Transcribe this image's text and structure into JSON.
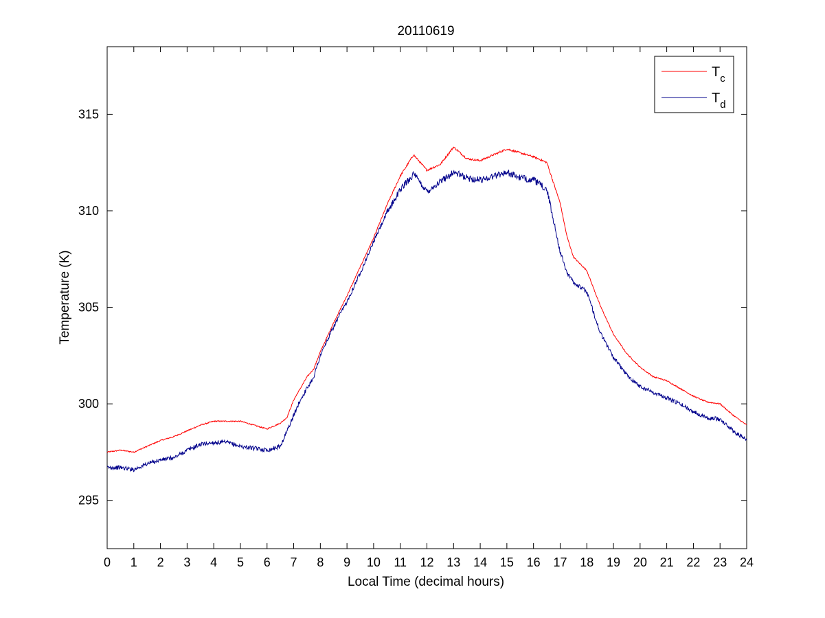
{
  "chart_data": {
    "type": "line",
    "title": "20110619",
    "xlabel": "Local Time (decimal hours)",
    "ylabel": "Temperature (K)",
    "xlim": [
      0,
      24
    ],
    "ylim": [
      292.5,
      318.5
    ],
    "x_ticks": [
      "0",
      "1",
      "2",
      "3",
      "4",
      "5",
      "6",
      "7",
      "8",
      "9",
      "10",
      "11",
      "12",
      "13",
      "14",
      "15",
      "16",
      "17",
      "18",
      "19",
      "20",
      "21",
      "22",
      "23",
      "24"
    ],
    "y_ticks": [
      "295",
      "300",
      "305",
      "310",
      "315"
    ],
    "grid": false,
    "legend_position": "top-right",
    "series": [
      {
        "name": "T",
        "subscript": "c",
        "color": "#ff0000",
        "x": [
          0,
          0.5,
          1,
          1.5,
          2,
          2.5,
          3,
          3.5,
          4,
          4.5,
          5,
          5.5,
          6,
          6.5,
          6.75,
          7,
          7.25,
          7.5,
          7.75,
          8,
          8.5,
          9,
          9.5,
          10,
          10.5,
          11,
          11.5,
          12,
          12.5,
          13,
          13.5,
          14,
          14.5,
          15,
          15.5,
          16,
          16.5,
          17,
          17.25,
          17.5,
          18,
          18.5,
          19,
          19.5,
          20,
          20.5,
          21,
          21.5,
          22,
          22.5,
          23,
          23.5,
          24
        ],
        "y": [
          297.5,
          297.6,
          297.5,
          297.8,
          298.1,
          298.3,
          298.6,
          298.9,
          299.1,
          299.1,
          299.1,
          298.9,
          298.7,
          299.0,
          299.3,
          300.2,
          300.8,
          301.4,
          301.8,
          302.7,
          304.2,
          305.6,
          307.1,
          308.6,
          310.3,
          311.8,
          312.9,
          312.1,
          312.4,
          313.3,
          312.7,
          312.6,
          312.9,
          313.2,
          313.0,
          312.8,
          312.5,
          310.4,
          308.7,
          307.6,
          306.9,
          305.1,
          303.6,
          302.6,
          301.9,
          301.4,
          301.2,
          300.8,
          300.4,
          300.1,
          300.0,
          299.4,
          298.9
        ]
      },
      {
        "name": "T",
        "subscript": "d",
        "color": "#00008b",
        "x": [
          0,
          0.5,
          1,
          1.5,
          2,
          2.5,
          3,
          3.5,
          4,
          4.5,
          5,
          5.5,
          6,
          6.5,
          6.75,
          7,
          7.25,
          7.5,
          7.75,
          8,
          8.5,
          9,
          9.5,
          10,
          10.5,
          11,
          11.5,
          12,
          12.5,
          13,
          13.5,
          14,
          14.5,
          15,
          15.5,
          16,
          16.5,
          17,
          17.25,
          17.5,
          18,
          18.5,
          19,
          19.5,
          20,
          20.5,
          21,
          21.5,
          22,
          22.5,
          23,
          23.5,
          24
        ],
        "y": [
          296.7,
          296.7,
          296.6,
          296.9,
          297.1,
          297.2,
          297.6,
          297.9,
          298.0,
          298.0,
          297.8,
          297.7,
          297.6,
          297.8,
          298.6,
          299.4,
          300.2,
          300.8,
          301.4,
          302.5,
          304.0,
          305.3,
          306.8,
          308.4,
          309.9,
          311.1,
          311.9,
          311.0,
          311.5,
          312.0,
          311.7,
          311.6,
          311.8,
          312.0,
          311.7,
          311.6,
          311.1,
          307.9,
          306.8,
          306.3,
          305.8,
          303.7,
          302.4,
          301.5,
          300.9,
          300.6,
          300.3,
          300.0,
          299.6,
          299.3,
          299.2,
          298.6,
          298.1
        ]
      }
    ]
  }
}
